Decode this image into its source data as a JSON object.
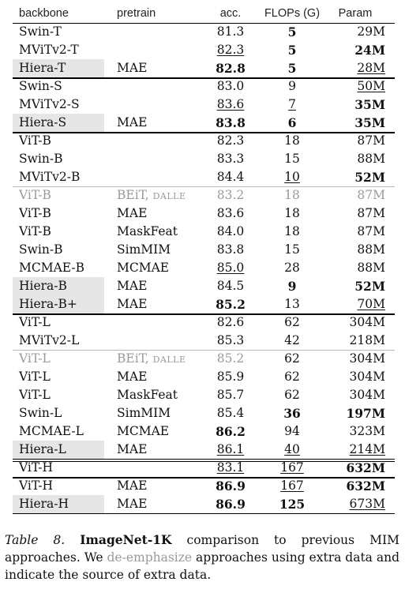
{
  "table": {
    "headers": [
      "backbone",
      "pretrain",
      "acc.",
      "FLOPs (G)",
      "Param"
    ],
    "groups": [
      {
        "rows": [
          {
            "backbone": "Swin-T",
            "pretrain": "",
            "acc": "81.3",
            "flops": "5",
            "param": "29M",
            "fmt": {
              "flops": "b"
            }
          },
          {
            "backbone": "MViTv2-T",
            "pretrain": "",
            "acc": "82.3",
            "flops": "5",
            "param": "24M",
            "fmt": {
              "acc": "u",
              "flops": "b",
              "param": "b"
            }
          },
          {
            "backbone": "Hiera-T",
            "pretrain": "MAE",
            "acc": "82.8",
            "flops": "5",
            "param": "28M",
            "hiera": true,
            "fmt": {
              "acc": "b",
              "flops": "b",
              "param": "u"
            }
          }
        ]
      },
      {
        "rows": [
          {
            "backbone": "Swin-S",
            "pretrain": "",
            "acc": "83.0",
            "flops": "9",
            "param": "50M",
            "fmt": {
              "param": "u"
            }
          },
          {
            "backbone": "MViTv2-S",
            "pretrain": "",
            "acc": "83.6",
            "flops": "7",
            "param": "35M",
            "fmt": {
              "acc": "u",
              "flops": "u",
              "param": "b"
            }
          },
          {
            "backbone": "Hiera-S",
            "pretrain": "MAE",
            "acc": "83.8",
            "flops": "6",
            "param": "35M",
            "hiera": true,
            "fmt": {
              "acc": "b",
              "flops": "b",
              "param": "b"
            }
          }
        ]
      },
      {
        "rows": [
          {
            "backbone": "ViT-B",
            "pretrain": "",
            "acc": "82.3",
            "flops": "18",
            "param": "87M"
          },
          {
            "backbone": "Swin-B",
            "pretrain": "",
            "acc": "83.3",
            "flops": "15",
            "param": "88M"
          },
          {
            "backbone": "MViTv2-B",
            "pretrain": "",
            "acc": "84.4",
            "flops": "10",
            "param": "52M",
            "fmt": {
              "flops": "u",
              "param": "b"
            }
          },
          {
            "backbone": "ViT-B",
            "pretrain": "BEiT,",
            "pretrain_extra": "DALLE",
            "acc": "83.2",
            "flops": "18",
            "param": "87M",
            "deemph": true,
            "rule": "light"
          },
          {
            "backbone": "ViT-B",
            "pretrain": "MAE",
            "acc": "83.6",
            "flops": "18",
            "param": "87M"
          },
          {
            "backbone": "ViT-B",
            "pretrain": "MaskFeat",
            "acc": "84.0",
            "flops": "18",
            "param": "87M"
          },
          {
            "backbone": "Swin-B",
            "pretrain": "SimMIM",
            "acc": "83.8",
            "flops": "15",
            "param": "88M"
          },
          {
            "backbone": "MCMAE-B",
            "pretrain": "MCMAE",
            "acc": "85.0",
            "flops": "28",
            "param": "88M",
            "fmt": {
              "acc": "u"
            }
          },
          {
            "backbone": "Hiera-B",
            "pretrain": "MAE",
            "acc": "84.5",
            "flops": "9",
            "param": "52M",
            "hiera": true,
            "fmt": {
              "flops": "b",
              "param": "b"
            }
          },
          {
            "backbone": "Hiera-B+",
            "pretrain": "MAE",
            "acc": "85.2",
            "flops": "13",
            "param": "70M",
            "hiera": true,
            "fmt": {
              "acc": "b",
              "param": "u"
            }
          }
        ]
      },
      {
        "rows": [
          {
            "backbone": "ViT-L",
            "pretrain": "",
            "acc": "82.6",
            "flops": "62",
            "param": "304M"
          },
          {
            "backbone": "MViTv2-L",
            "pretrain": "",
            "acc": "85.3",
            "flops": "42",
            "param": "218M"
          },
          {
            "backbone": "ViT-L",
            "pretrain": "BEiT,",
            "pretrain_extra": "DALLE",
            "acc": "85.2",
            "flops": "62",
            "param": "304M",
            "deemph": [
              "backbone",
              "pretrain",
              "acc"
            ],
            "rule": "light"
          },
          {
            "backbone": "ViT-L",
            "pretrain": "MAE",
            "acc": "85.9",
            "flops": "62",
            "param": "304M"
          },
          {
            "backbone": "ViT-L",
            "pretrain": "MaskFeat",
            "acc": "85.7",
            "flops": "62",
            "param": "304M"
          },
          {
            "backbone": "Swin-L",
            "pretrain": "SimMIM",
            "acc": "85.4",
            "flops": "36",
            "param": "197M",
            "fmt": {
              "flops": "b",
              "param": "b"
            }
          },
          {
            "backbone": "MCMAE-L",
            "pretrain": "MCMAE",
            "acc": "86.2",
            "flops": "94",
            "param": "323M",
            "fmt": {
              "acc": "b"
            }
          },
          {
            "backbone": "Hiera-L",
            "pretrain": "MAE",
            "acc": "86.1",
            "flops": "40",
            "param": "214M",
            "hiera": true,
            "fmt": {
              "acc": "u",
              "flops": "u",
              "param": "u"
            }
          }
        ]
      },
      {
        "rule": "double",
        "rows": [
          {
            "backbone": "ViT-H",
            "pretrain": "",
            "acc": "83.1",
            "flops": "167",
            "param": "632M",
            "fmt": {
              "acc": "u",
              "flops": "u",
              "param": "b"
            }
          }
        ]
      },
      {
        "rows": [
          {
            "backbone": "ViT-H",
            "pretrain": "MAE",
            "acc": "86.9",
            "flops": "167",
            "param": "632M",
            "fmt": {
              "acc": "b",
              "flops": "u",
              "param": "b"
            }
          },
          {
            "backbone": "Hiera-H",
            "pretrain": "MAE",
            "acc": "86.9",
            "flops": "125",
            "param": "673M",
            "hiera": true,
            "fmt": {
              "acc": "b",
              "flops": "b",
              "param": "u"
            }
          }
        ]
      }
    ]
  },
  "caption": {
    "label": "Table 8.",
    "title": "ImageNet-1K",
    "text1": " comparison to previous MIM approaches. We ",
    "deemph_word": "de-emphasize",
    "text2": " approaches using extra data and indicate the source of extra data."
  }
}
